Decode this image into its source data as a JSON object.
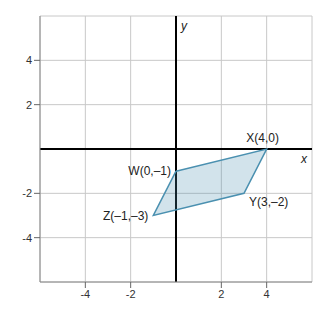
{
  "chart_data": {
    "type": "polygon",
    "points": [
      {
        "x": 0,
        "y": -1,
        "label": "W(0,–1)"
      },
      {
        "x": 4,
        "y": 0,
        "label": "X(4,0)"
      },
      {
        "x": 3,
        "y": -2,
        "label": "Y(3,–2)"
      },
      {
        "x": -1,
        "y": -3,
        "label": "Z(–1,–3)"
      }
    ],
    "x_label": "x",
    "y_label": "y",
    "xlim": [
      -6,
      6
    ],
    "ylim": [
      -6,
      6
    ],
    "xticks": [
      -4,
      -2,
      2,
      4
    ],
    "yticks": [
      -4,
      -2,
      2,
      4
    ],
    "grid": true,
    "color": "#4a90b0"
  }
}
